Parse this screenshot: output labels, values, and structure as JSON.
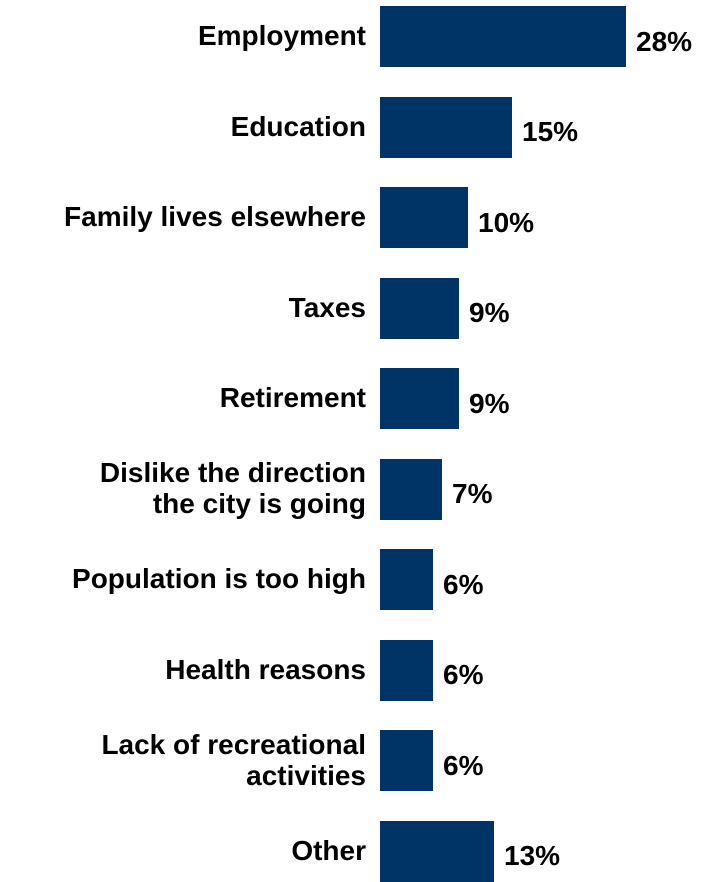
{
  "chart_data": {
    "type": "bar",
    "orientation": "horizontal",
    "categories": [
      "Employment",
      "Education",
      "Family lives elsewhere",
      "Taxes",
      "Retirement",
      "Dislike the direction\nthe city is going",
      "Population is too high",
      "Health reasons",
      "Lack of recreational\nactivities",
      "Other"
    ],
    "values": [
      28,
      15,
      10,
      9,
      9,
      7,
      6,
      6,
      6,
      13
    ],
    "value_labels": [
      "28%",
      "15%",
      "10%",
      "9%",
      "9%",
      "7%",
      "6%",
      "6%",
      "6%",
      "13%"
    ],
    "unit": "%",
    "bar_color": "#003366",
    "xlim": [
      0,
      28
    ],
    "grid": false,
    "legend": "none"
  }
}
